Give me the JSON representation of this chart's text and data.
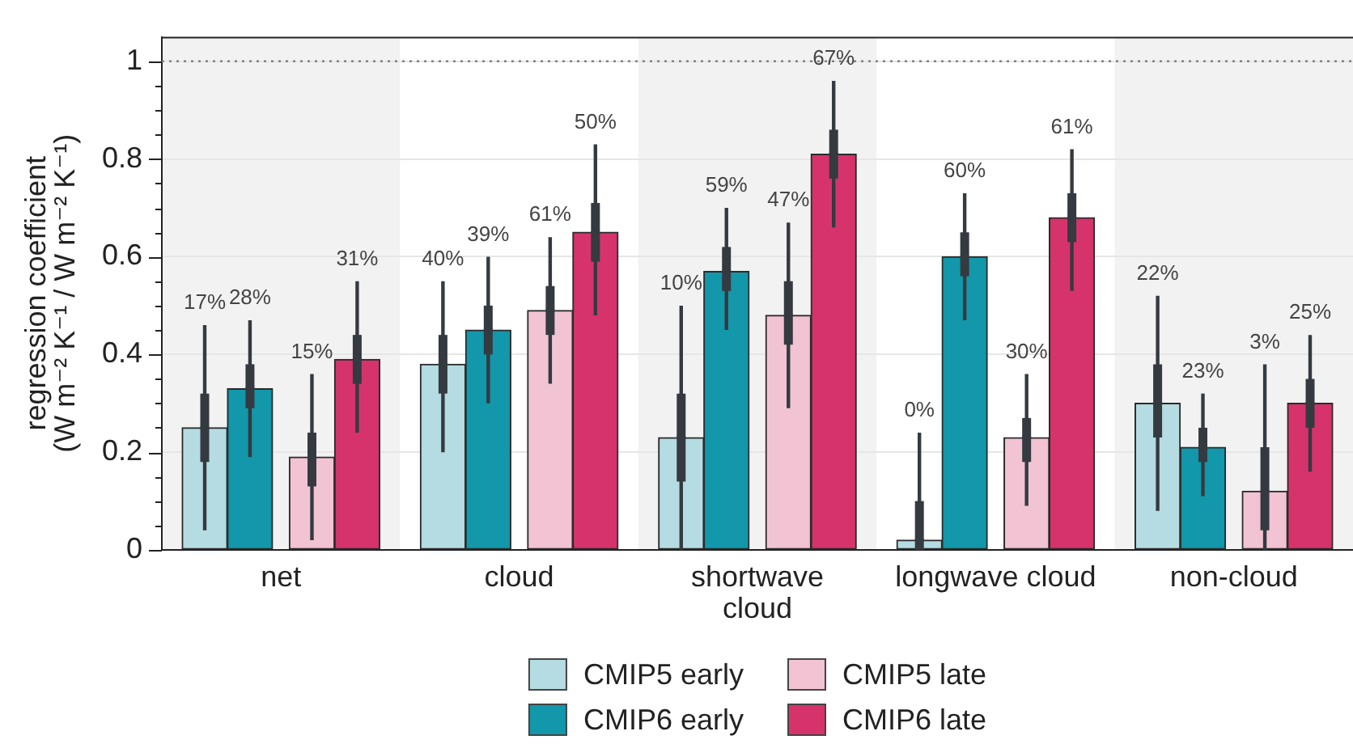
{
  "chart_data": {
    "type": "bar",
    "ylabel": "regression coefficient\n(W m⁻² K⁻¹ / W m⁻² K⁻¹)",
    "categories": [
      "net",
      "cloud",
      "shortwave cloud",
      "longwave cloud",
      "non-cloud"
    ],
    "series": [
      {
        "name": "CMIP5 early",
        "color": "#b5dce2",
        "values": [
          0.25,
          0.38,
          0.23,
          0.02,
          0.3
        ]
      },
      {
        "name": "CMIP6 early",
        "color": "#1397aa",
        "values": [
          0.33,
          0.45,
          0.57,
          0.6,
          0.21
        ]
      },
      {
        "name": "CMIP5 late",
        "color": "#f2c3d3",
        "values": [
          0.19,
          0.49,
          0.48,
          0.23,
          0.12
        ]
      },
      {
        "name": "CMIP6 late",
        "color": "#d6336c",
        "values": [
          0.39,
          0.65,
          0.81,
          0.68,
          0.3
        ]
      },
      {
        "type": "box",
        "color": "#343a40",
        "boxes": [
          {
            "low": 0.04,
            "q1": 0.18,
            "median": 0.25,
            "q3": 0.32,
            "high": 0.46
          },
          {
            "low": 0.2,
            "q1": 0.32,
            "median": 0.38,
            "q3": 0.44,
            "high": 0.55
          },
          {
            "low": 0,
            "q1": 0.14,
            "median": 0.23,
            "q3": 0.32,
            "high": 0.5
          },
          {
            "low": 0,
            "q1": 0,
            "median": 0.02,
            "q3": 0.1,
            "high": 0.24
          },
          {
            "low": 0.08,
            "q1": 0.23,
            "median": 0.3,
            "q3": 0.38,
            "high": 0.52
          }
        ]
      },
      {
        "type": "box",
        "color": "#343a40",
        "boxes": [
          {
            "low": 0.19,
            "q1": 0.29,
            "median": 0.33,
            "q3": 0.38,
            "high": 0.47
          },
          {
            "low": 0.3,
            "q1": 0.4,
            "median": 0.45,
            "q3": 0.5,
            "high": 0.6
          },
          {
            "low": 0.45,
            "q1": 0.53,
            "median": 0.57,
            "q3": 0.62,
            "high": 0.7
          },
          {
            "low": 0.47,
            "q1": 0.56,
            "median": 0.6,
            "q3": 0.65,
            "high": 0.73
          },
          {
            "low": 0.11,
            "q1": 0.18,
            "median": 0.21,
            "q3": 0.25,
            "high": 0.32
          }
        ]
      },
      {
        "type": "box",
        "color": "#343a40",
        "boxes": [
          {
            "low": 0.02,
            "q1": 0.13,
            "median": 0.19,
            "q3": 0.24,
            "high": 0.36
          },
          {
            "low": 0.34,
            "q1": 0.44,
            "median": 0.49,
            "q3": 0.54,
            "high": 0.64
          },
          {
            "low": 0.29,
            "q1": 0.42,
            "median": 0.48,
            "q3": 0.55,
            "high": 0.67
          },
          {
            "low": 0.09,
            "q1": 0.18,
            "median": 0.23,
            "q3": 0.27,
            "high": 0.36
          },
          {
            "low": 0,
            "q1": 0.04,
            "median": 0.12,
            "q3": 0.21,
            "high": 0.38
          }
        ]
      },
      {
        "type": "box",
        "color": "#343a40",
        "boxes": [
          {
            "low": 0.24,
            "q1": 0.34,
            "median": 0.39,
            "q3": 0.44,
            "high": 0.55
          },
          {
            "low": 0.48,
            "q1": 0.59,
            "median": 0.65,
            "q3": 0.71,
            "high": 0.83
          },
          {
            "low": 0.66,
            "q1": 0.76,
            "median": 0.81,
            "q3": 0.86,
            "high": 0.96
          },
          {
            "low": 0.53,
            "q1": 0.63,
            "median": 0.68,
            "q3": 0.73,
            "high": 0.82
          },
          {
            "low": 0.16,
            "q1": 0.25,
            "median": 0.3,
            "q3": 0.35,
            "high": 0.44
          }
        ]
      }
    ],
    "annotations": [
      "17%",
      "28%",
      "15%",
      "31%",
      "40%",
      "39%",
      "61%",
      "50%",
      "10%",
      "59%",
      "47%",
      "67%",
      "0%",
      "60%",
      "30%",
      "61%",
      "22%",
      "23%",
      "3%",
      "25%"
    ],
    "ylim": [
      0,
      1.05
    ],
    "yticks": [
      0,
      {
        "value": 0.05,
        "label": null
      },
      {
        "value": 0.1,
        "label": null
      },
      {
        "value": 0.15,
        "label": null
      },
      0.2,
      {
        "value": 0.25,
        "label": null
      },
      {
        "value": 0.3,
        "label": null
      },
      {
        "value": 0.35,
        "label": null
      },
      0.4,
      {
        "value": 0.45,
        "label": null
      },
      {
        "value": 0.5,
        "label": null
      },
      {
        "value": 0.55,
        "label": null
      },
      0.6,
      {
        "value": 0.65,
        "label": null
      },
      {
        "value": 0.7,
        "label": null
      },
      {
        "value": 0.75,
        "label": null
      },
      0.8,
      {
        "value": 0.85,
        "label": null
      },
      {
        "value": 0.9,
        "label": null
      },
      {
        "value": 0.95,
        "label": null
      },
      1
    ],
    "grid": "y",
    "legend": "bottom",
    "bands": [
      {
        "axis": "x",
        "from": "net",
        "to": "net",
        "color": "#f2f2f2"
      },
      {
        "axis": "x",
        "from": "shortwave cloud",
        "to": "shortwave cloud",
        "color": "#f2f2f2"
      },
      {
        "axis": "x",
        "from": "non-cloud",
        "to": "non-cloud",
        "color": "#f2f2f2"
      }
    ],
    "ref_lines": [
      {
        "axis": "y",
        "value": 1,
        "color": "#808080",
        "line_style": "dotted"
      }
    ]
  }
}
